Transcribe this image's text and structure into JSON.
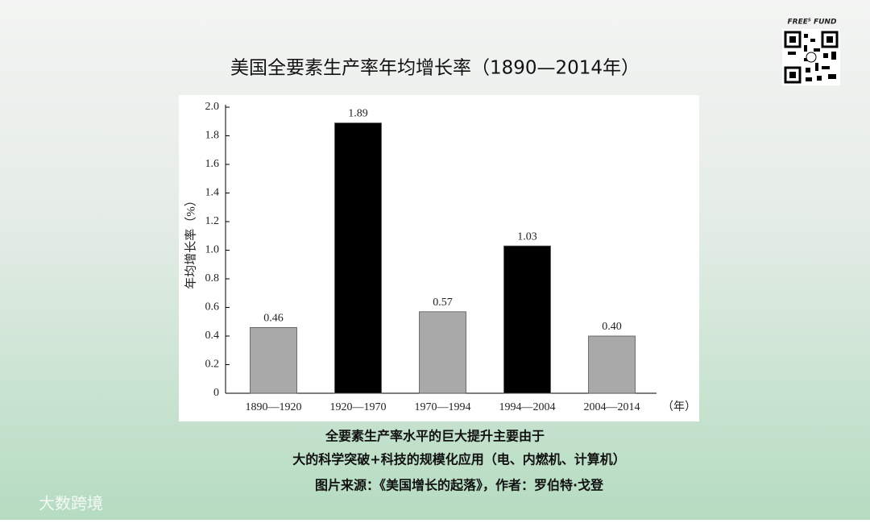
{
  "brand": {
    "fund": "FREE⁵ FUND",
    "watermark": "大数跨境"
  },
  "caption": [
    "全要素生产率水平的巨大提升主要由于",
    "大的科学突破+科技的规模化应用（电、内燃机、计算机）",
    "图片来源：《美国增长的起落》，作者：罗伯特·戈登"
  ],
  "chart_data": {
    "type": "bar",
    "title": "美国全要素生产率年均增长率（1890—2014年）",
    "y_label": "年均增长率（%）",
    "x_label": "（年）",
    "categories": [
      "1890—1920",
      "1920—1970",
      "1970—1994",
      "1994—2004",
      "2004—2014"
    ],
    "values": [
      0.46,
      1.89,
      0.57,
      1.03,
      0.4
    ],
    "value_labels": [
      "0.46",
      "1.89",
      "0.57",
      "1.03",
      "0.40"
    ],
    "colors": [
      "#a9a9a9",
      "#000000",
      "#a9a9a9",
      "#000000",
      "#a9a9a9"
    ],
    "ylim": [
      0,
      2
    ],
    "yticks": [
      0,
      0.2,
      0.4,
      0.6,
      0.8,
      {
        "value": 1,
        "label": "1.0"
      },
      1.2,
      1.4,
      1.6,
      1.8,
      {
        "value": 2,
        "label": "2.0"
      }
    ],
    "grid": false
  }
}
